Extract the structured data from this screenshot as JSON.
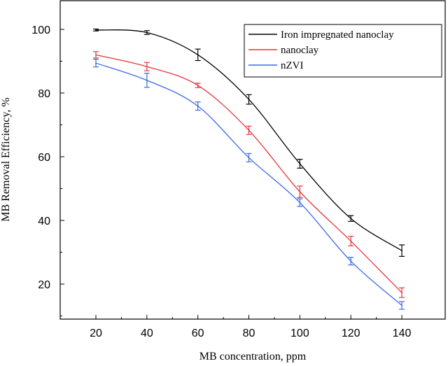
{
  "chart_data": {
    "type": "line",
    "title": "",
    "xlabel": "MB concentration, ppm",
    "ylabel": "MB Removal Efficiency, %",
    "x": [
      20,
      40,
      60,
      80,
      100,
      120,
      140
    ],
    "xticks": [
      20,
      40,
      60,
      80,
      100,
      120,
      140
    ],
    "yticks": [
      20,
      40,
      60,
      80,
      100
    ],
    "xlim": [
      6,
      157
    ],
    "ylim": [
      9,
      109
    ],
    "grid": false,
    "legend_position": "top-right",
    "smooth": true,
    "series": [
      {
        "name": "Iron impregnated nanoclay",
        "color": "#000000",
        "values": [
          99.8,
          99.0,
          92.0,
          78.0,
          57.8,
          40.6,
          30.5
        ],
        "errors": [
          0.3,
          0.6,
          1.8,
          1.5,
          1.4,
          0.9,
          1.8
        ]
      },
      {
        "name": "nanoclay",
        "color": "#e8343c",
        "values": [
          92.0,
          88.3,
          82.4,
          68.3,
          49.0,
          33.5,
          17.3
        ],
        "errors": [
          1.0,
          1.3,
          0.7,
          1.3,
          1.8,
          1.5,
          1.5
        ]
      },
      {
        "name": "nZVI",
        "color": "#3c6ae6",
        "values": [
          89.4,
          84.0,
          75.9,
          59.7,
          45.6,
          27.2,
          13.3
        ],
        "errors": [
          1.2,
          2.2,
          1.3,
          1.3,
          1.2,
          1.2,
          1.2
        ]
      }
    ]
  }
}
